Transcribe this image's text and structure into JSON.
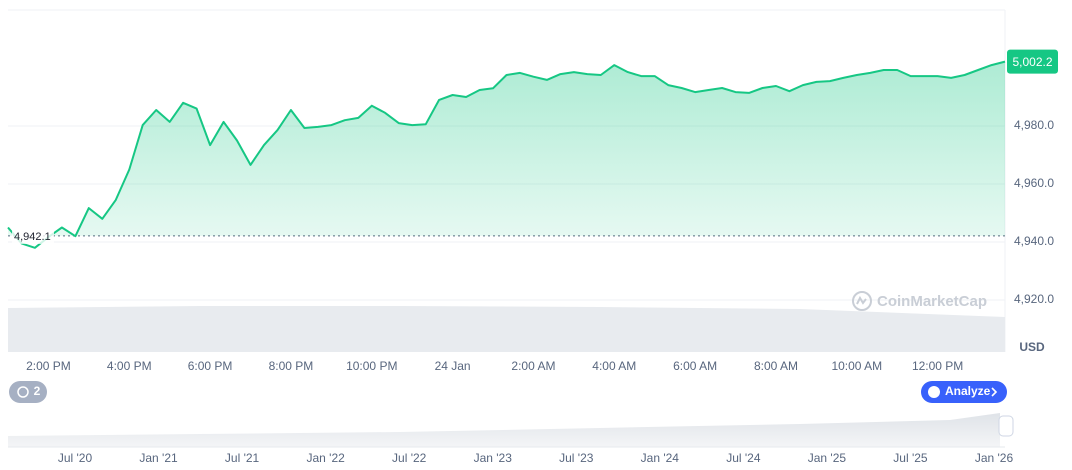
{
  "chart_data": {
    "type": "line",
    "categories": [
      null,
      null,
      null,
      "2:00 PM",
      null,
      null,
      null,
      null,
      null,
      "4:00 PM",
      null,
      null,
      null,
      null,
      null,
      "6:00 PM",
      null,
      null,
      null,
      null,
      null,
      "8:00 PM",
      null,
      null,
      null,
      null,
      null,
      "10:00 PM",
      null,
      null,
      null,
      null,
      null,
      "24 Jan",
      null,
      null,
      null,
      null,
      null,
      "2:00 AM",
      null,
      null,
      null,
      null,
      null,
      "4:00 AM",
      null,
      null,
      null,
      null,
      null,
      "6:00 AM",
      null,
      null,
      null,
      null,
      null,
      "8:00 AM",
      null,
      null,
      null,
      null,
      null,
      "10:00 AM",
      null,
      null,
      null,
      null,
      null,
      "12:00 PM",
      null,
      null,
      null,
      null,
      null
    ],
    "values": [
      4945,
      4939.5,
      4938,
      4941.7,
      4945,
      4942,
      4951.7,
      4948,
      4954.5,
      4965,
      4980.3,
      4985.5,
      4981.4,
      4988,
      4986,
      4973.4,
      4981.4,
      4975,
      4966.6,
      4973.4,
      4978.6,
      4985.5,
      4979.3,
      4979.7,
      4980.3,
      4982,
      4982.8,
      4987,
      4984.5,
      4981,
      4980.3,
      4980.6,
      4989,
      4990.7,
      4990,
      4992.4,
      4993,
      4997.6,
      4998.3,
      4997,
      4995.9,
      4997.9,
      4998.6,
      4997.9,
      4997.6,
      5001,
      4998.6,
      4997.2,
      4997.2,
      4994.1,
      4993.1,
      4991.7,
      4992.4,
      4993.1,
      4991.7,
      4991.4,
      4993.1,
      4993.8,
      4992,
      4994.1,
      4995.2,
      4995.5,
      4996.6,
      4997.6,
      4998.3,
      4999.3,
      4999.3,
      4997.2,
      4997.2,
      4997.2,
      4996.6,
      4997.6,
      4999.3,
      5001,
      5002.2
    ],
    "color": "#16c784",
    "ylim": [
      4920,
      5020
    ],
    "yticks": [
      {
        "value": 4920,
        "label": "4,920.0"
      },
      {
        "value": 4940,
        "label": "4,940.0"
      },
      {
        "value": 4960,
        "label": "4,960.0"
      },
      {
        "value": 4980,
        "label": "4,980.0"
      }
    ],
    "grid": true,
    "baseline": {
      "value": 4942.1,
      "label": "4,942.1"
    },
    "current": {
      "value": 5002.2,
      "label": "5,002.2"
    },
    "currency": "USD",
    "watermark": "CoinMarketCap",
    "navigator_labels": [
      "Jul '20",
      "Jan '21",
      "Jul '21",
      "Jan '22",
      "Jul '22",
      "Jan '23",
      "Jul '23",
      "Jan '24",
      "Jul '24",
      "Jan '25",
      "Jul '25",
      "Jan '26"
    ]
  },
  "ui": {
    "history_count": 2,
    "analyze_button": "Analyze"
  }
}
